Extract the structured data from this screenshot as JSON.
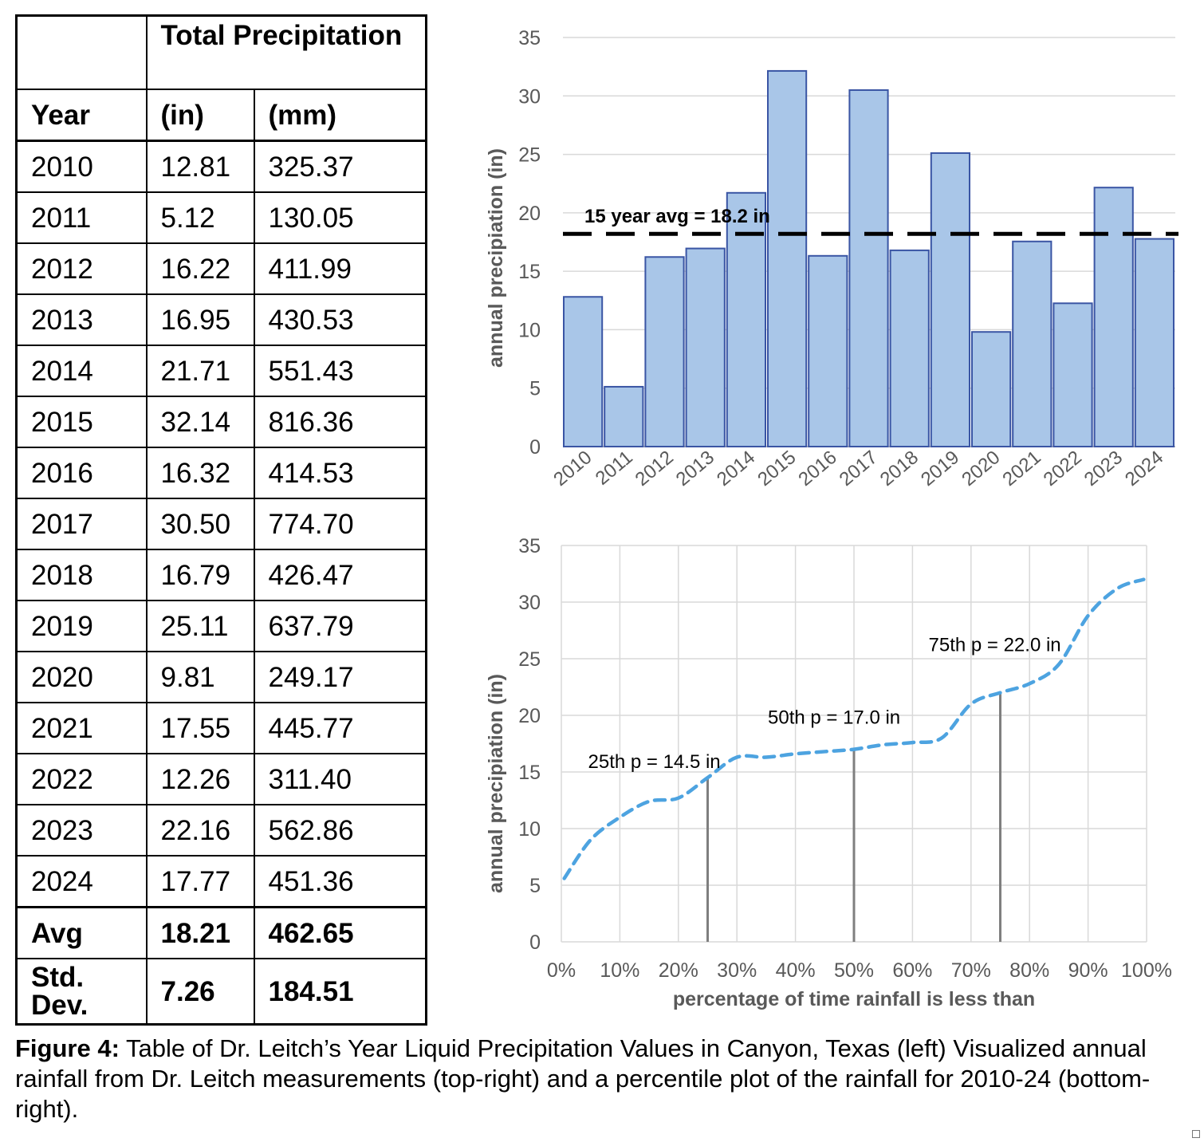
{
  "table": {
    "header_top": "Total Precipitation",
    "col_year": "Year",
    "col_in": "(in)",
    "col_mm": "(mm)",
    "rows": [
      {
        "year": "2010",
        "in": "12.81",
        "mm": "325.37"
      },
      {
        "year": "2011",
        "in": "5.12",
        "mm": "130.05"
      },
      {
        "year": "2012",
        "in": "16.22",
        "mm": "411.99"
      },
      {
        "year": "2013",
        "in": "16.95",
        "mm": "430.53"
      },
      {
        "year": "2014",
        "in": "21.71",
        "mm": "551.43"
      },
      {
        "year": "2015",
        "in": "32.14",
        "mm": "816.36"
      },
      {
        "year": "2016",
        "in": "16.32",
        "mm": "414.53"
      },
      {
        "year": "2017",
        "in": "30.50",
        "mm": "774.70"
      },
      {
        "year": "2018",
        "in": "16.79",
        "mm": "426.47"
      },
      {
        "year": "2019",
        "in": "25.11",
        "mm": "637.79"
      },
      {
        "year": "2020",
        "in": "9.81",
        "mm": "249.17"
      },
      {
        "year": "2021",
        "in": "17.55",
        "mm": "445.77"
      },
      {
        "year": "2022",
        "in": "12.26",
        "mm": "311.40"
      },
      {
        "year": "2023",
        "in": "22.16",
        "mm": "562.86"
      },
      {
        "year": "2024",
        "in": "17.77",
        "mm": "451.36"
      }
    ],
    "avg": {
      "label": "Avg",
      "in": "18.21",
      "mm": "462.65"
    },
    "std": {
      "label": "Std. Dev.",
      "in": "7.26",
      "mm": "184.51"
    }
  },
  "chart_data": [
    {
      "type": "bar",
      "categories": [
        "2010",
        "2011",
        "2012",
        "2013",
        "2014",
        "2015",
        "2016",
        "2017",
        "2018",
        "2019",
        "2020",
        "2021",
        "2022",
        "2023",
        "2024"
      ],
      "values": [
        12.81,
        5.12,
        16.22,
        16.95,
        21.71,
        32.14,
        16.32,
        30.5,
        16.79,
        25.11,
        9.81,
        17.55,
        12.26,
        22.16,
        17.77
      ],
      "ylabel": "annual precipiation (in)",
      "ylim": [
        0,
        35
      ],
      "yticks": [
        "0",
        "5",
        "10",
        "15",
        "20",
        "25",
        "30",
        "35"
      ],
      "average_line": {
        "value": 18.2,
        "label": "15 year avg = 18.2 in"
      },
      "bar_color": "#a9c6e8",
      "bar_edge_color": "#3a55a4",
      "grid": true
    },
    {
      "type": "line",
      "x": [
        0.5,
        5,
        10,
        15,
        20,
        25,
        30,
        35,
        40,
        45,
        50,
        55,
        60,
        65,
        70,
        75,
        80,
        85,
        90,
        95,
        99.5
      ],
      "y": [
        5.6,
        9.0,
        11.0,
        12.4,
        12.7,
        14.5,
        16.3,
        16.3,
        16.6,
        16.8,
        17.0,
        17.4,
        17.6,
        18.0,
        21.0,
        22.0,
        22.8,
        24.5,
        28.8,
        31.2,
        32.0
      ],
      "xlabel": "percentage of time rainfall is less than",
      "ylabel": "annual precipiation (in)",
      "xlim": [
        0,
        100
      ],
      "ylim": [
        0,
        35
      ],
      "xticks": [
        "0%",
        "10%",
        "20%",
        "30%",
        "40%",
        "50%",
        "60%",
        "70%",
        "80%",
        "90%",
        "100%"
      ],
      "yticks": [
        "0",
        "5",
        "10",
        "15",
        "20",
        "25",
        "30",
        "35"
      ],
      "line_color": "#4da3e0",
      "grid": true,
      "percentile_markers": [
        {
          "x": 25,
          "y": 14.5,
          "label": "25th p = 14.5 in"
        },
        {
          "x": 50,
          "y": 17.0,
          "label": "50th p = 17.0 in"
        },
        {
          "x": 75,
          "y": 22.0,
          "label": "75th p = 22.0 in"
        }
      ]
    }
  ],
  "caption": {
    "lead": "Figure 4:",
    "text": " Table of Dr. Leitch’s Year Liquid Precipitation Values in Canyon, Texas (left) Visualized annual rainfall from Dr. Leitch measurements (top-right) and a percentile plot of the rainfall for 2010-24 (bottom-right)."
  }
}
